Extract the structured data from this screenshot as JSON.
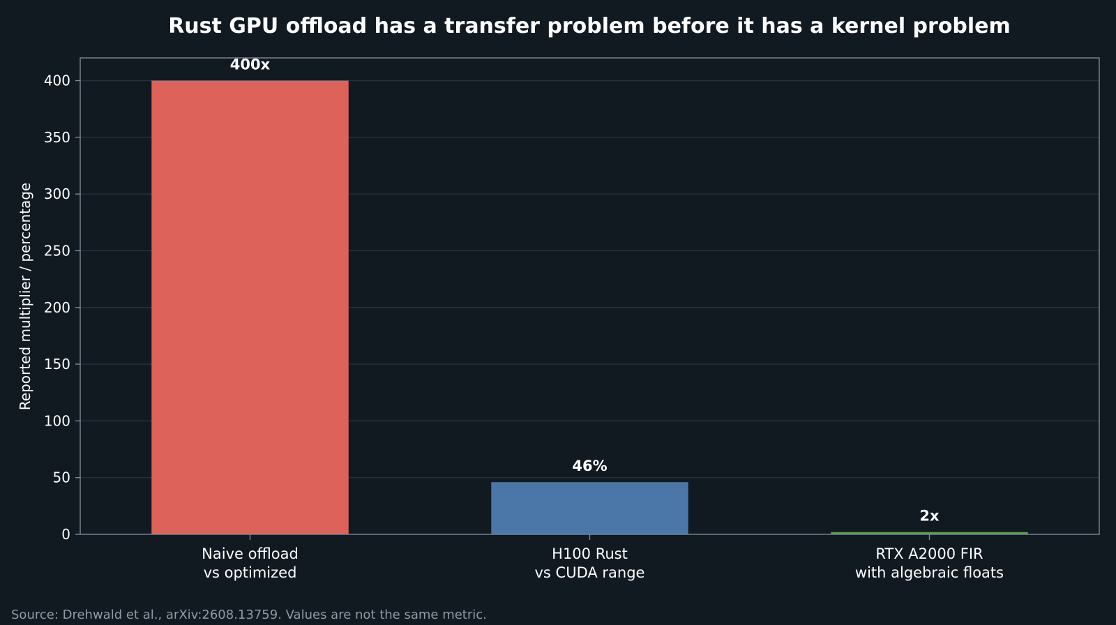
{
  "chart_data": {
    "type": "bar",
    "title": "Rust GPU offload has a transfer problem before it has a kernel problem",
    "xlabel": "",
    "ylabel": "Reported multiplier / percentage",
    "ylim": [
      0,
      420
    ],
    "yticks": [
      0,
      50,
      100,
      150,
      200,
      250,
      300,
      350,
      400
    ],
    "grid": true,
    "categories": [
      [
        "Naive offload",
        "vs optimized"
      ],
      [
        "H100 Rust",
        "vs CUDA range"
      ],
      [
        "RTX A2000 FIR",
        "with algebraic floats"
      ]
    ],
    "values": [
      400,
      46,
      2
    ],
    "data_labels": [
      "400x",
      "46%",
      "2x"
    ],
    "bar_colors": [
      "#dd6259",
      "#4a77a8",
      "#5a9b4c"
    ],
    "source": "Source: Drehwald et al., arXiv:2608.13759. Values are not the same metric."
  },
  "colors": {
    "background": "#111921",
    "plot_background": "#111921",
    "grid": "#26323e",
    "axis": "#7d8a98",
    "text": "#ffffff",
    "muted_text": "#8f9aa6"
  }
}
